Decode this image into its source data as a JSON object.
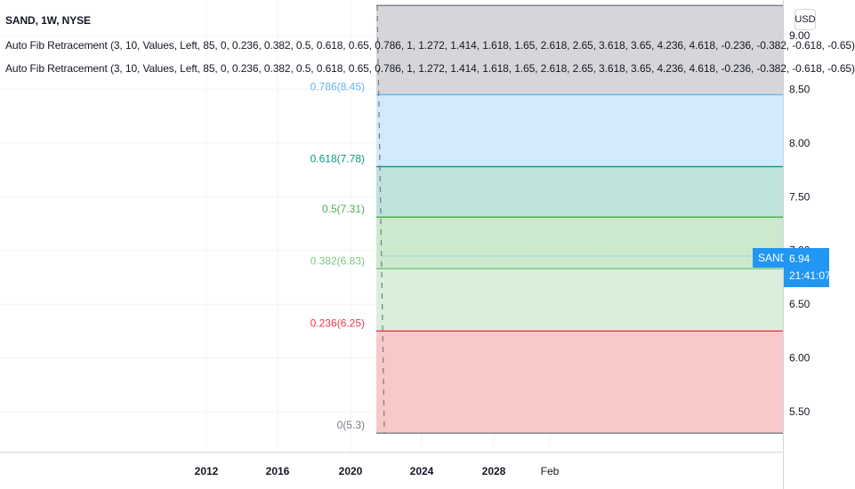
{
  "legend": {
    "title": "SAND, 1W, NYSE",
    "indicator_1": "Auto Fib Retracement (3, 10, Values, Left, 85, 0, 0.236, 0.382, 0.5, 0.618, 0.65, 0.786, 1, 1.272, 1.414, 1.618, 1.65, 2.618, 2.65, 3.618, 3.65, 4.236, 4.618, -0.236, -0.382, -0.618, -0.65)",
    "indicator_2": "Auto Fib Retracement (3, 10, Values, Left, 85, 0, 0.236, 0.382, 0.5, 0.618, 0.65, 0.786, 1, 1.272, 1.414, 1.618, 1.65, 2.618, 2.65, 3.618, 3.65, 4.236, 4.618, -0.236, -0.382, -0.618, -0.65)"
  },
  "currency_button": "USD",
  "last_price": {
    "symbol": "SAND",
    "price": "6.94",
    "countdown": "21:41:07"
  },
  "chart_data": {
    "type": "line",
    "title": "SAND, 1W, NYSE",
    "x_ticks": [
      "2012",
      "2016",
      "2020",
      "2024",
      "2028",
      "Feb"
    ],
    "y_ticks": [
      "5.50",
      "6.00",
      "6.50",
      "7.00",
      "7.50",
      "8.00",
      "8.50",
      "9.00"
    ],
    "ylim": [
      5.2,
      9.3
    ],
    "grid": true,
    "fib_levels": [
      {
        "label": "0(5.3)",
        "value": 5.3,
        "line_color": "#787b86",
        "fill": "#f7c9c9",
        "label_color": "#787b86"
      },
      {
        "label": "0.236(6.25)",
        "value": 6.25,
        "line_color": "#f23645",
        "fill": "#d9efdb",
        "label_color": "#f23645"
      },
      {
        "label": "0.382(6.83)",
        "value": 6.83,
        "line_color": "#81c784",
        "fill": "#cce9cd",
        "label_color": "#81c784"
      },
      {
        "label": "0.5(7.31)",
        "value": 7.31,
        "line_color": "#4caf50",
        "fill": "#bfe3dc",
        "label_color": "#4caf50"
      },
      {
        "label": "0.618(7.78)",
        "value": 7.78,
        "line_color": "#089981",
        "fill": "#d3e9fc",
        "label_color": "#089981"
      },
      {
        "label": "0.786(8.45)",
        "value": 8.45,
        "line_color": "#64b5f6",
        "fill": "#d6d6da",
        "label_color": "#64b5f6"
      },
      {
        "label": "",
        "value": 9.28,
        "line_color": "#787b86",
        "fill": "",
        "label_color": ""
      }
    ],
    "last_value": 6.94,
    "series_color": "#2196f3"
  }
}
